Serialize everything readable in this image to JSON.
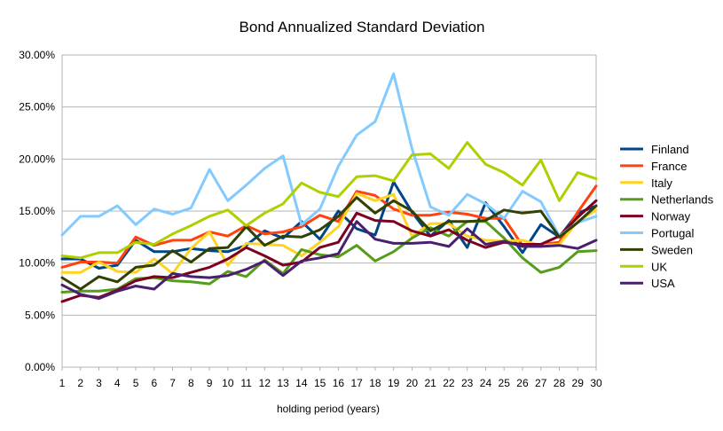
{
  "chart_data": {
    "type": "line",
    "title": "Bond Annualized Standard Deviation",
    "xlabel": "holding period (years)",
    "ylabel": "",
    "ylim": [
      0,
      0.3
    ],
    "y_ticks": [
      "0.00%",
      "5.00%",
      "10.00%",
      "15.00%",
      "20.00%",
      "25.00%",
      "30.00%"
    ],
    "categories": [
      "1",
      "2",
      "3",
      "4",
      "5",
      "6",
      "7",
      "8",
      "9",
      "10",
      "11",
      "12",
      "13",
      "14",
      "15",
      "16",
      "17",
      "18",
      "19",
      "20",
      "21",
      "22",
      "23",
      "24",
      "25",
      "26",
      "27",
      "28",
      "29",
      "30"
    ],
    "grid": true,
    "legend_position": "right",
    "series": [
      {
        "name": "Finland",
        "color": "#004586",
        "values": [
          0.104,
          0.104,
          0.095,
          0.098,
          0.122,
          0.111,
          0.111,
          0.114,
          0.112,
          0.111,
          0.117,
          0.131,
          0.124,
          0.14,
          0.123,
          0.15,
          0.133,
          0.127,
          0.178,
          0.149,
          0.126,
          0.141,
          0.115,
          0.158,
          0.135,
          0.11,
          0.137,
          0.125,
          0.148,
          0.155
        ]
      },
      {
        "name": "France",
        "color": "#ff420e",
        "values": [
          0.096,
          0.101,
          0.101,
          0.1,
          0.125,
          0.117,
          0.122,
          0.122,
          0.13,
          0.126,
          0.136,
          0.128,
          0.13,
          0.135,
          0.146,
          0.14,
          0.169,
          0.165,
          0.152,
          0.146,
          0.146,
          0.149,
          0.147,
          0.143,
          0.143,
          0.117,
          0.118,
          0.12,
          0.149,
          0.174
        ]
      },
      {
        "name": "Italy",
        "color": "#ffd320",
        "values": [
          0.091,
          0.091,
          0.101,
          0.092,
          0.091,
          0.104,
          0.09,
          0.114,
          0.13,
          0.098,
          0.119,
          0.118,
          0.117,
          0.107,
          0.12,
          0.135,
          0.167,
          0.16,
          0.166,
          0.126,
          0.138,
          0.138,
          0.126,
          0.122,
          0.121,
          0.122,
          0.117,
          0.118,
          0.14,
          0.151
        ]
      },
      {
        "name": "Netherlands",
        "color": "#579d1c",
        "values": [
          0.072,
          0.073,
          0.073,
          0.075,
          0.085,
          0.086,
          0.083,
          0.082,
          0.08,
          0.092,
          0.087,
          0.103,
          0.09,
          0.113,
          0.108,
          0.106,
          0.117,
          0.102,
          0.111,
          0.124,
          0.134,
          0.126,
          0.14,
          0.14,
          0.124,
          0.105,
          0.091,
          0.096,
          0.111,
          0.112
        ]
      },
      {
        "name": "Norway",
        "color": "#7e0021",
        "values": [
          0.063,
          0.069,
          0.067,
          0.074,
          0.083,
          0.087,
          0.086,
          0.091,
          0.096,
          0.104,
          0.115,
          0.107,
          0.098,
          0.101,
          0.115,
          0.12,
          0.148,
          0.141,
          0.14,
          0.131,
          0.126,
          0.132,
          0.122,
          0.115,
          0.12,
          0.118,
          0.118,
          0.126,
          0.144,
          0.16
        ]
      },
      {
        "name": "Portugal",
        "color": "#83caff",
        "values": [
          0.127,
          0.145,
          0.145,
          0.155,
          0.137,
          0.152,
          0.147,
          0.153,
          0.19,
          0.16,
          0.175,
          0.191,
          0.203,
          0.137,
          0.152,
          0.193,
          0.223,
          0.236,
          0.282,
          0.21,
          0.154,
          0.146,
          0.166,
          0.157,
          0.143,
          0.169,
          0.159,
          0.126,
          0.139,
          0.145
        ]
      },
      {
        "name": "Sweden",
        "color": "#314004",
        "values": [
          0.086,
          0.075,
          0.087,
          0.082,
          0.096,
          0.098,
          0.112,
          0.101,
          0.114,
          0.115,
          0.135,
          0.117,
          0.126,
          0.125,
          0.132,
          0.145,
          0.163,
          0.148,
          0.16,
          0.15,
          0.131,
          0.14,
          0.14,
          0.141,
          0.151,
          0.148,
          0.15,
          0.125,
          0.139,
          0.155
        ]
      },
      {
        "name": "UK",
        "color": "#aecf00",
        "values": [
          0.107,
          0.105,
          0.11,
          0.11,
          0.12,
          0.118,
          0.128,
          0.136,
          0.145,
          0.151,
          0.136,
          0.148,
          0.157,
          0.177,
          0.168,
          0.164,
          0.183,
          0.184,
          0.179,
          0.204,
          0.205,
          0.191,
          0.216,
          0.195,
          0.187,
          0.175,
          0.199,
          0.16,
          0.187,
          0.181
        ]
      },
      {
        "name": "USA",
        "color": "#4b1f6f",
        "values": [
          0.079,
          0.07,
          0.066,
          0.073,
          0.078,
          0.075,
          0.09,
          0.087,
          0.086,
          0.088,
          0.094,
          0.102,
          0.088,
          0.102,
          0.105,
          0.109,
          0.14,
          0.123,
          0.119,
          0.119,
          0.12,
          0.116,
          0.133,
          0.118,
          0.121,
          0.116,
          0.116,
          0.117,
          0.114,
          0.122
        ]
      }
    ]
  }
}
